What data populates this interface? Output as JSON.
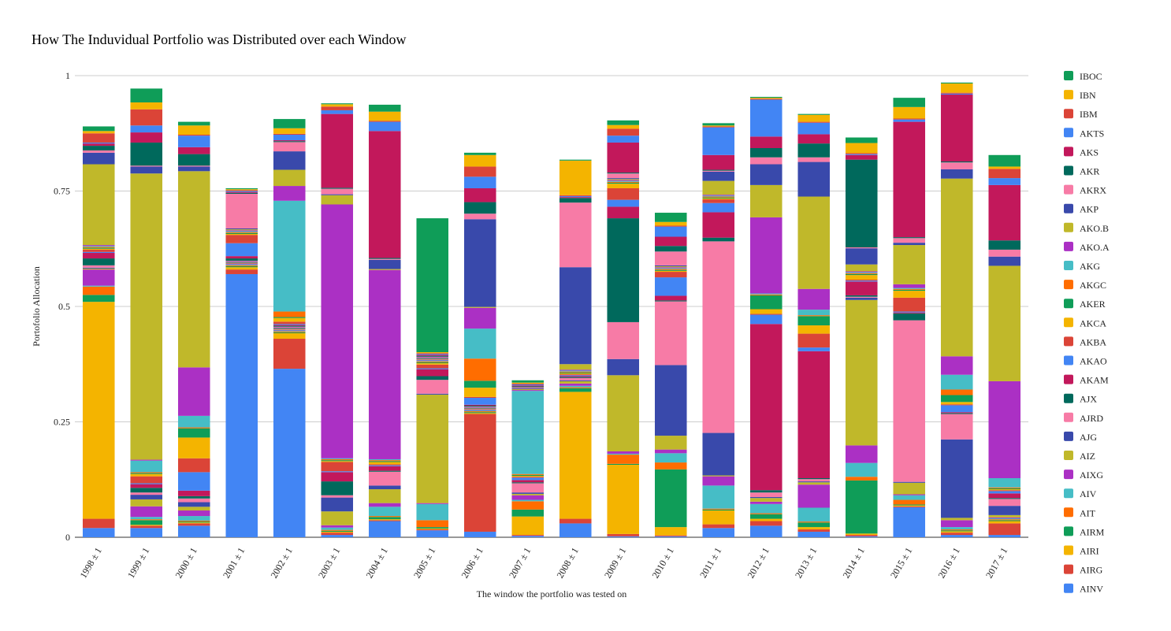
{
  "chart_data": {
    "type": "bar",
    "stacked": true,
    "title": "How The Induvidual Portfolio was Distributed over each Window",
    "xlabel": "The window the portfolio was tested on",
    "ylabel": "Portofolio Allocation",
    "ylim": [
      0,
      1
    ],
    "yticks": [
      "0",
      "0.25",
      "0.5",
      "0.75",
      "1"
    ],
    "ytick_values": [
      0,
      0.25,
      0.5,
      0.75,
      1
    ],
    "grid": true,
    "legend_position": "right",
    "categories": [
      "1998 ± 1",
      "1999 ± 1",
      "2000 ± 1",
      "2001 ± 1",
      "2002 ± 1",
      "2003 ± 1",
      "2004 ± 1",
      "2005 ± 1",
      "2006 ± 1",
      "2007 ± 1",
      "2008 ± 1",
      "2009 ± 1",
      "2010 ± 1",
      "2011 ± 1",
      "2012 ± 1",
      "2013 ± 1",
      "2014 ± 1",
      "2015 ± 1",
      "2016 ± 1",
      "2017 ± 1"
    ],
    "series": [
      {
        "name": "AINV",
        "color": "#4285F4",
        "values": [
          0.02,
          0.02,
          0.025,
          0.57,
          0.365,
          0.005,
          0.035,
          0.015,
          0.012,
          0.003,
          0.03,
          0.002,
          0.002,
          0.02,
          0.025,
          0.012,
          0.002,
          0.065,
          0.005,
          0.005
        ]
      },
      {
        "name": "AIRG",
        "color": "#DB4437",
        "values": [
          0.02,
          0.005,
          0.005,
          0.01,
          0.065,
          0.005,
          0.002,
          0.002,
          0.255,
          0.002,
          0.01,
          0.005,
          0.002,
          0.008,
          0.01,
          0.005,
          0.003,
          0.002,
          0.005,
          0.025
        ]
      },
      {
        "name": "AIRI",
        "color": "#F4B400",
        "values": [
          0.47,
          0.002,
          0.002,
          0.005,
          0.012,
          0.002,
          0.002,
          0.002,
          0.002,
          0.04,
          0.275,
          0.15,
          0.018,
          0.03,
          0.005,
          0.005,
          0.003,
          0.002,
          0.003,
          0.005
        ]
      },
      {
        "name": "AIRM",
        "color": "#0F9D58",
        "values": [
          0.015,
          0.01,
          0.002,
          0.002,
          0.002,
          0.002,
          0.005,
          0.003,
          0.002,
          0.015,
          0.008,
          0.002,
          0.125,
          0.002,
          0.01,
          0.01,
          0.115,
          0.002,
          0.002,
          0.002
        ]
      },
      {
        "name": "AIT",
        "color": "#FF6D00",
        "values": [
          0.018,
          0.002,
          0.002,
          0.002,
          0.002,
          0.002,
          0.002,
          0.015,
          0.002,
          0.018,
          0.002,
          0.02,
          0.015,
          0.002,
          0.002,
          0.002,
          0.008,
          0.01,
          0.002,
          0.002
        ]
      },
      {
        "name": "AIV",
        "color": "#46BDC6",
        "values": [
          0.002,
          0.005,
          0.01,
          0.002,
          0.002,
          0.005,
          0.02,
          0.035,
          0.002,
          0.003,
          0.003,
          0.002,
          0.02,
          0.05,
          0.02,
          0.03,
          0.03,
          0.01,
          0.005,
          0.002
        ]
      },
      {
        "name": "AIXG",
        "color": "#AB30C4",
        "values": [
          0.035,
          0.023,
          0.012,
          0.002,
          0.002,
          0.005,
          0.008,
          0.002,
          0.002,
          0.01,
          0.005,
          0.005,
          0.008,
          0.02,
          0.005,
          0.05,
          0.038,
          0.002,
          0.015,
          0.002
        ]
      },
      {
        "name": "AIZ",
        "color": "#C0B82A",
        "values": [
          0.002,
          0.015,
          0.008,
          0.002,
          0.002,
          0.03,
          0.03,
          0.235,
          0.002,
          0.003,
          0.005,
          0.165,
          0.03,
          0.002,
          0.008,
          0.005,
          0.315,
          0.025,
          0.005,
          0.005
        ]
      },
      {
        "name": "AJG",
        "color": "#3949AB",
        "values": [
          0.002,
          0.01,
          0.01,
          0.002,
          0.002,
          0.03,
          0.008,
          0.002,
          0.002,
          0.003,
          0.002,
          0.035,
          0.153,
          0.092,
          0.002,
          0.002,
          0.005,
          0.002,
          0.17,
          0.02
        ]
      },
      {
        "name": "AJRD",
        "color": "#F77BA6",
        "values": [
          0.005,
          0.005,
          0.008,
          0.002,
          0.002,
          0.005,
          0.03,
          0.03,
          0.002,
          0.02,
          0.005,
          0.08,
          0.138,
          0.415,
          0.01,
          0.005,
          0.002,
          0.35,
          0.055,
          0.015
        ]
      },
      {
        "name": "AJX",
        "color": "#00695C",
        "values": [
          0.015,
          0.01,
          0.005,
          0.005,
          0.002,
          0.03,
          0.002,
          0.008,
          0.002,
          0.002,
          0.002,
          0.225,
          0.002,
          0.008,
          0.005,
          0.002,
          0.003,
          0.015,
          0.002,
          0.002
        ]
      },
      {
        "name": "AKAM",
        "color": "#C2185B",
        "values": [
          0.012,
          0.008,
          0.012,
          0.005,
          0.002,
          0.02,
          0.01,
          0.015,
          0.002,
          0.005,
          0.002,
          0.025,
          0.01,
          0.055,
          0.36,
          0.275,
          0.03,
          0.002,
          0.002,
          0.01
        ]
      },
      {
        "name": "AKAO",
        "color": "#4285F4",
        "values": [
          0.002,
          0.002,
          0.04,
          0.028,
          0.002,
          0.002,
          0.002,
          0.002,
          0.015,
          0.005,
          0.002,
          0.015,
          0.04,
          0.02,
          0.02,
          0.008,
          0.002,
          0.002,
          0.015,
          0.005
        ]
      },
      {
        "name": "AKBA",
        "color": "#DB4437",
        "values": [
          0.005,
          0.015,
          0.03,
          0.018,
          0.005,
          0.02,
          0.002,
          0.008,
          0.002,
          0.002,
          0.002,
          0.025,
          0.012,
          0.008,
          0.002,
          0.03,
          0.002,
          0.03,
          0.002,
          0.002
        ]
      },
      {
        "name": "AKCA",
        "color": "#F4B400",
        "values": [
          0.002,
          0.005,
          0.045,
          0.002,
          0.008,
          0.002,
          0.005,
          0.003,
          0.02,
          0.002,
          0.002,
          0.01,
          0.002,
          0.002,
          0.01,
          0.018,
          0.01,
          0.015,
          0.005,
          0.002
        ]
      },
      {
        "name": "AKER",
        "color": "#0F9D58",
        "values": [
          0.002,
          0.002,
          0.02,
          0.002,
          0.002,
          0.002,
          0.002,
          0.002,
          0.015,
          0.002,
          0.002,
          0.002,
          0.002,
          0.002,
          0.03,
          0.02,
          0.002,
          0.002,
          0.015,
          0.002
        ]
      },
      {
        "name": "AKGC",
        "color": "#FF6D00",
        "values": [
          0.002,
          0.002,
          0.002,
          0.002,
          0.012,
          0.002,
          0.002,
          0.002,
          0.048,
          0.002,
          0.002,
          0.002,
          0.002,
          0.002,
          0.002,
          0.002,
          0.002,
          0.002,
          0.012,
          0.002
        ]
      },
      {
        "name": "AKG",
        "color": "#46BDC6",
        "values": [
          0.002,
          0.025,
          0.025,
          0.002,
          0.24,
          0.002,
          0.002,
          0.002,
          0.065,
          0.18,
          0.002,
          0.002,
          0.002,
          0.002,
          0.002,
          0.012,
          0.002,
          0.002,
          0.032,
          0.02
        ]
      },
      {
        "name": "AKO.A",
        "color": "#AB30C4",
        "values": [
          0.002,
          0.002,
          0.105,
          0.002,
          0.032,
          0.55,
          0.41,
          0.002,
          0.045,
          0.002,
          0.002,
          0.002,
          0.002,
          0.002,
          0.165,
          0.045,
          0.002,
          0.008,
          0.04,
          0.21
        ]
      },
      {
        "name": "AKO.B",
        "color": "#C0B82A",
        "values": [
          0.175,
          0.62,
          0.425,
          0.002,
          0.035,
          0.02,
          0.002,
          0.002,
          0.002,
          0.002,
          0.012,
          0.002,
          0.002,
          0.03,
          0.07,
          0.2,
          0.015,
          0.085,
          0.385,
          0.25
        ]
      },
      {
        "name": "AKP",
        "color": "#3949AB",
        "values": [
          0.025,
          0.015,
          0.01,
          0.002,
          0.04,
          0.002,
          0.02,
          0.002,
          0.19,
          0.002,
          0.21,
          0.002,
          0.002,
          0.02,
          0.045,
          0.075,
          0.035,
          0.005,
          0.02,
          0.02
        ]
      },
      {
        "name": "AKRX",
        "color": "#F77BA6",
        "values": [
          0.005,
          0.002,
          0.002,
          0.075,
          0.02,
          0.012,
          0.002,
          0.002,
          0.012,
          0.002,
          0.14,
          0.01,
          0.03,
          0.002,
          0.015,
          0.01,
          0.002,
          0.01,
          0.015,
          0.015
        ]
      },
      {
        "name": "AKR",
        "color": "#00695C",
        "values": [
          0.01,
          0.05,
          0.025,
          0.002,
          0.002,
          0.002,
          0.002,
          0.002,
          0.025,
          0.002,
          0.01,
          0.002,
          0.012,
          0.002,
          0.02,
          0.03,
          0.19,
          0.002,
          0.002,
          0.02
        ]
      },
      {
        "name": "AKS",
        "color": "#C2185B",
        "values": [
          0.005,
          0.022,
          0.015,
          0.002,
          0.002,
          0.16,
          0.275,
          0.002,
          0.03,
          0.002,
          0.002,
          0.065,
          0.02,
          0.032,
          0.025,
          0.02,
          0.01,
          0.25,
          0.145,
          0.12
        ]
      },
      {
        "name": "AKTS",
        "color": "#4285F4",
        "values": [
          0.002,
          0.015,
          0.025,
          0.002,
          0.012,
          0.008,
          0.02,
          0.002,
          0.025,
          0.002,
          0.002,
          0.015,
          0.022,
          0.06,
          0.08,
          0.025,
          0.002,
          0.005,
          0.002,
          0.015
        ]
      },
      {
        "name": "IBM",
        "color": "#DB4437",
        "values": [
          0.02,
          0.035,
          0.002,
          0.002,
          0.002,
          0.008,
          0.002,
          0.002,
          0.022,
          0.002,
          0.002,
          0.015,
          0.002,
          0.002,
          0.002,
          0.002,
          0.002,
          0.002,
          0.002,
          0.02
        ]
      },
      {
        "name": "IBN",
        "color": "#F4B400",
        "values": [
          0.005,
          0.015,
          0.02,
          0.002,
          0.012,
          0.005,
          0.02,
          0.002,
          0.025,
          0.002,
          0.075,
          0.008,
          0.008,
          0.002,
          0.002,
          0.015,
          0.022,
          0.025,
          0.02,
          0.005
        ]
      },
      {
        "name": "IBOC",
        "color": "#0F9D58",
        "values": [
          0.01,
          0.03,
          0.008,
          0.002,
          0.02,
          0.002,
          0.015,
          0.29,
          0.005,
          0.005,
          0.002,
          0.01,
          0.02,
          0.005,
          0.002,
          0.002,
          0.012,
          0.02,
          0.002,
          0.025
        ]
      }
    ]
  }
}
